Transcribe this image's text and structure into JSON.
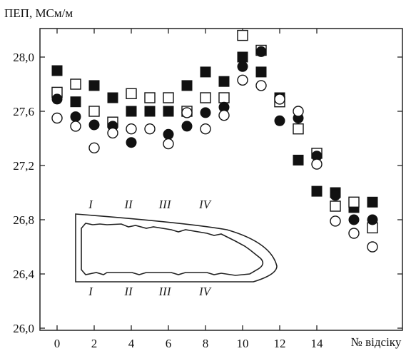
{
  "chart_data": {
    "type": "scatter",
    "ylabel": "ПЕП, МСм/м",
    "xlabel": "№ відсіку",
    "xlim": [
      -1,
      18.2
    ],
    "ylim": [
      26.0,
      28.3
    ],
    "x_ticks": [
      0,
      2,
      4,
      6,
      8,
      10,
      12,
      14
    ],
    "x_tick_labels": [
      "0",
      "2",
      "4",
      "6",
      "8",
      "10",
      "12",
      "14"
    ],
    "y_ticks": [
      26.0,
      26.4,
      26.8,
      27.2,
      27.6,
      28.0
    ],
    "y_tick_labels": [
      "26,0",
      "26,4",
      "26,8",
      "27,2",
      "27,6",
      "28,0"
    ],
    "grid": false,
    "series": [
      {
        "marker": "square-filled",
        "points": [
          [
            0,
            27.9
          ],
          [
            1,
            27.67
          ],
          [
            2,
            27.79
          ],
          [
            3,
            27.7
          ],
          [
            4,
            27.6
          ],
          [
            5,
            27.6
          ],
          [
            6,
            27.6
          ],
          [
            7,
            27.79
          ],
          [
            8,
            27.89
          ],
          [
            9,
            27.82
          ],
          [
            10,
            28.0
          ],
          [
            11,
            27.89
          ],
          [
            12,
            27.7
          ],
          [
            13,
            27.24
          ],
          [
            14,
            27.01
          ],
          [
            15,
            27.0
          ],
          [
            16,
            26.89
          ],
          [
            17,
            26.93
          ]
        ]
      },
      {
        "marker": "square-open",
        "points": [
          [
            0,
            27.74
          ],
          [
            1,
            27.8
          ],
          [
            2,
            27.6
          ],
          [
            3,
            27.52
          ],
          [
            4,
            27.73
          ],
          [
            5,
            27.7
          ],
          [
            6,
            27.7
          ],
          [
            7,
            27.6
          ],
          [
            8,
            27.7
          ],
          [
            9,
            27.7
          ],
          [
            10,
            28.16
          ],
          [
            11,
            28.05
          ],
          [
            12,
            27.67
          ],
          [
            13,
            27.47
          ],
          [
            14,
            27.29
          ],
          [
            15,
            26.9
          ],
          [
            16,
            26.93
          ],
          [
            17,
            26.74
          ]
        ]
      },
      {
        "marker": "circle-filled",
        "points": [
          [
            0,
            27.69
          ],
          [
            1,
            27.56
          ],
          [
            2,
            27.5
          ],
          [
            3,
            27.49
          ],
          [
            4,
            27.37
          ],
          [
            5,
            27.6
          ],
          [
            6,
            27.43
          ],
          [
            7,
            27.49
          ],
          [
            8,
            27.59
          ],
          [
            9,
            27.63
          ],
          [
            10,
            27.93
          ],
          [
            11,
            28.04
          ],
          [
            12,
            27.53
          ],
          [
            13,
            27.55
          ],
          [
            14,
            27.27
          ],
          [
            15,
            26.98
          ],
          [
            16,
            26.8
          ],
          [
            17,
            26.8
          ]
        ]
      },
      {
        "marker": "circle-open",
        "points": [
          [
            0,
            27.55
          ],
          [
            1,
            27.49
          ],
          [
            2,
            27.33
          ],
          [
            3,
            27.44
          ],
          [
            4,
            27.47
          ],
          [
            5,
            27.47
          ],
          [
            6,
            27.36
          ],
          [
            7,
            27.59
          ],
          [
            8,
            27.47
          ],
          [
            9,
            27.57
          ],
          [
            10,
            27.83
          ],
          [
            11,
            27.79
          ],
          [
            12,
            27.69
          ],
          [
            13,
            27.6
          ],
          [
            14,
            27.21
          ],
          [
            15,
            26.79
          ],
          [
            16,
            26.7
          ],
          [
            17,
            26.6
          ]
        ]
      }
    ],
    "inset": {
      "top_labels": [
        "I",
        "II",
        "III",
        "IV"
      ],
      "bottom_labels": [
        "I",
        "II",
        "III",
        "IV"
      ]
    }
  },
  "colors": {
    "marker": "#111111",
    "axis": "#222222",
    "background": "#ffffff"
  }
}
